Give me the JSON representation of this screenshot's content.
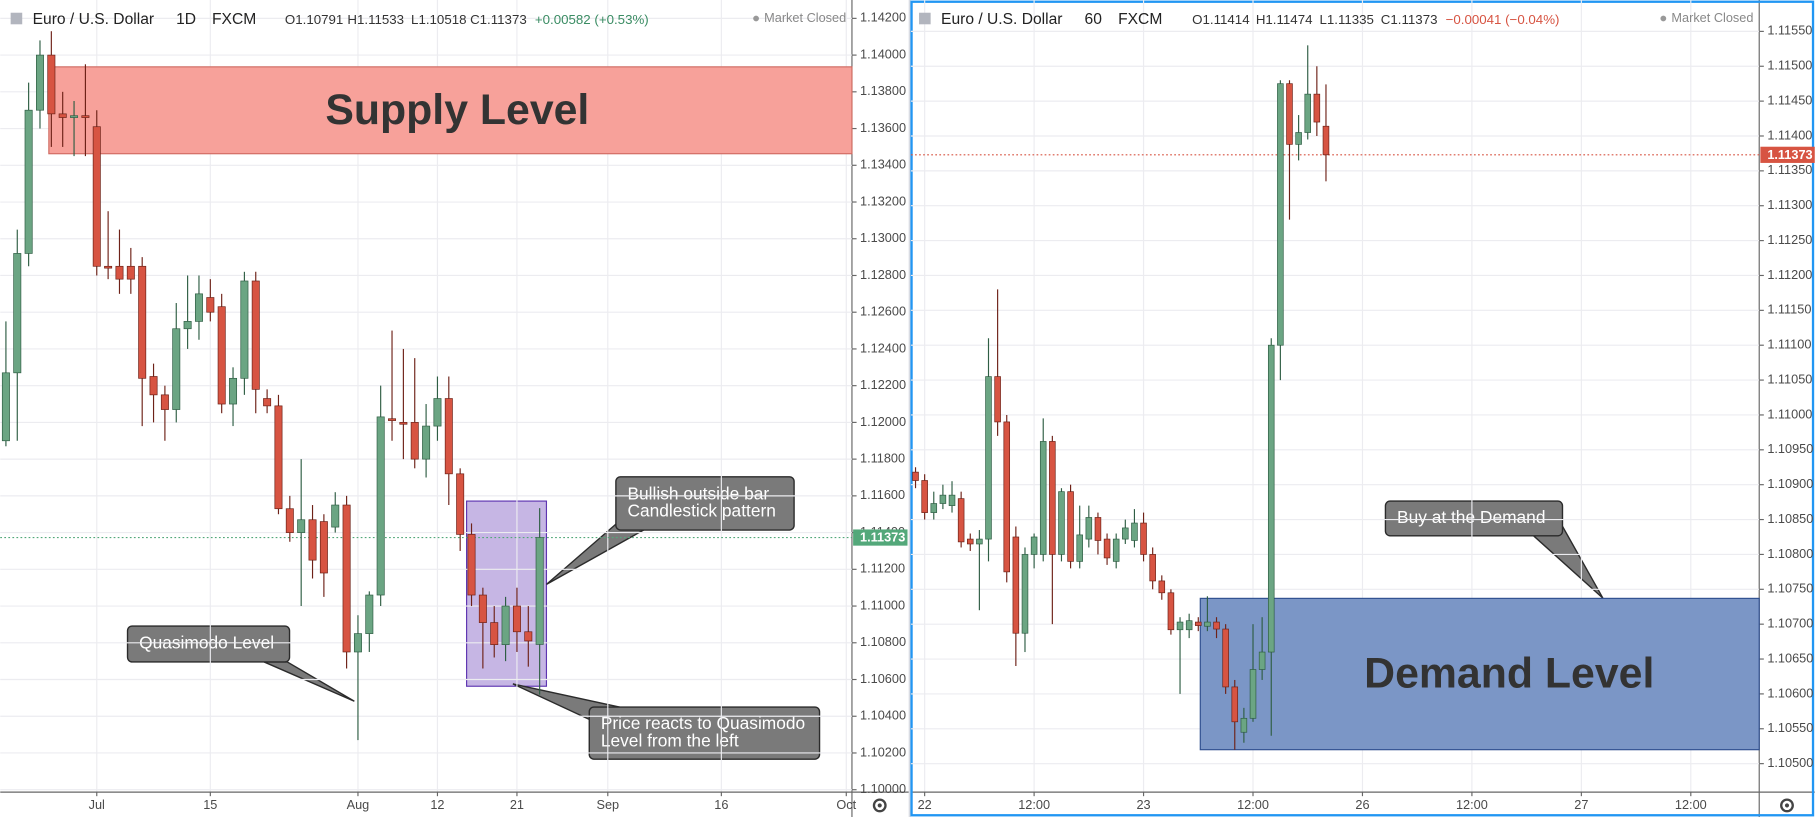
{
  "chart_data": [
    {
      "type": "candlestick",
      "title": "Euro / U.S. Dollar",
      "interval": "1D",
      "source": "FXCM",
      "ohlc": [
        "O1.10791",
        "H1.11533",
        "L1.10518",
        "C1.11373"
      ],
      "change": "+0.00582 (+0.53%)",
      "change_color": "#3a8c63",
      "status": "Market Closed",
      "up_color": "#6ba583",
      "down_color": "#d75442",
      "grid": true,
      "ylim": [
        1.0999,
        1.143
      ],
      "yticks": [
        {
          "value": 1.142,
          "label": "1.14200"
        },
        {
          "value": 1.14,
          "label": "1.14000"
        },
        {
          "value": 1.138,
          "label": "1.13800"
        },
        {
          "value": 1.136,
          "label": "1.13600"
        },
        {
          "value": 1.134,
          "label": "1.13400"
        },
        {
          "value": 1.132,
          "label": "1.13200"
        },
        {
          "value": 1.13,
          "label": "1.13000"
        },
        {
          "value": 1.128,
          "label": "1.12800"
        },
        {
          "value": 1.126,
          "label": "1.12600"
        },
        {
          "value": 1.124,
          "label": "1.12400"
        },
        {
          "value": 1.122,
          "label": "1.12200"
        },
        {
          "value": 1.12,
          "label": "1.12000"
        },
        {
          "value": 1.118,
          "label": "1.11800"
        },
        {
          "value": 1.116,
          "label": "1.11600"
        },
        {
          "value": 1.114,
          "label": "1.11400"
        },
        {
          "value": 1.112,
          "label": "1.11200"
        },
        {
          "value": 1.11,
          "label": "1.11000"
        },
        {
          "value": 1.108,
          "label": "1.10800"
        },
        {
          "value": 1.106,
          "label": "1.10600"
        },
        {
          "value": 1.104,
          "label": "1.10400"
        },
        {
          "value": 1.102,
          "label": "1.10200"
        },
        {
          "value": 1.1,
          "label": "1.10000"
        }
      ],
      "categories": [
        null,
        null,
        null,
        null,
        null,
        null,
        null,
        null,
        "Jul",
        null,
        null,
        null,
        null,
        null,
        null,
        null,
        null,
        null,
        "15",
        null,
        null,
        null,
        null,
        null,
        null,
        null,
        null,
        null,
        null,
        null,
        null,
        "Aug",
        null,
        null,
        null,
        null,
        null,
        null,
        "12",
        null,
        null,
        null,
        null,
        null,
        null,
        "21",
        null,
        null,
        null,
        null,
        null,
        null,
        null,
        "Sep",
        null,
        null,
        null,
        null,
        null,
        null,
        null,
        null,
        null,
        "16",
        null,
        null,
        null,
        null,
        null,
        null,
        null,
        null,
        null,
        null,
        "Oct"
      ],
      "open": [
        1.119,
        1.1227,
        1.1292,
        1.137,
        1.14,
        1.1368,
        1.1366,
        1.1367,
        1.1361,
        1.1285,
        1.1285,
        1.1285,
        1.1285,
        1.1225,
        1.1215,
        1.1207,
        1.1251,
        1.1255,
        1.1268,
        1.1263,
        1.121,
        1.1224,
        1.1277,
        1.1213,
        1.1209,
        1.1153,
        1.114,
        1.1147,
        1.1146,
        1.1143,
        1.1155,
        1.1075,
        1.1085,
        1.1106,
        1.1202,
        1.12,
        1.12,
        1.118,
        1.1198,
        1.1213,
        1.1172,
        1.1139,
        1.1106,
        1.1091,
        1.1079,
        1.11,
        1.1086,
        1.10791,
        null,
        null,
        null,
        null,
        null,
        null,
        null,
        null,
        null,
        null,
        null,
        null,
        null,
        null,
        null,
        null,
        null,
        null,
        null,
        null,
        null,
        null,
        null,
        null,
        null,
        null,
        null
      ],
      "high": [
        1.1255,
        1.1305,
        1.1385,
        1.1408,
        1.1413,
        1.138,
        1.1375,
        1.1395,
        1.137,
        1.1315,
        1.1305,
        1.1295,
        1.129,
        1.1232,
        1.122,
        1.1265,
        1.128,
        1.128,
        1.1278,
        1.127,
        1.123,
        1.1282,
        1.1282,
        1.1218,
        1.1215,
        1.116,
        1.118,
        1.1155,
        1.115,
        1.1162,
        1.116,
        1.1095,
        1.1108,
        1.122,
        1.125,
        1.124,
        1.1235,
        1.121,
        1.1225,
        1.1225,
        1.1175,
        1.1145,
        1.111,
        1.11,
        1.1105,
        1.111,
        1.11,
        1.11533,
        null,
        null,
        null,
        null,
        null,
        null,
        null,
        null,
        null,
        null,
        null,
        null,
        null,
        null,
        null,
        null,
        null,
        null,
        null,
        null,
        null,
        null,
        null,
        null,
        null,
        null,
        null
      ],
      "low": [
        1.1187,
        1.119,
        1.1285,
        1.136,
        1.135,
        1.135,
        1.1345,
        1.1345,
        1.128,
        1.1278,
        1.127,
        1.127,
        1.1198,
        1.12,
        1.119,
        1.12,
        1.124,
        1.1245,
        1.1255,
        1.1205,
        1.1198,
        1.1215,
        1.1205,
        1.1205,
        1.115,
        1.1135,
        1.11,
        1.1115,
        1.1105,
        1.114,
        1.1066,
        1.1027,
        1.1075,
        1.11,
        1.119,
        1.118,
        1.1175,
        1.117,
        1.119,
        1.1155,
        1.113,
        1.11,
        1.1066,
        1.1072,
        1.107,
        1.1075,
        1.1067,
        1.10518,
        null,
        null,
        null,
        null,
        null,
        null,
        null,
        null,
        null,
        null,
        null,
        null,
        null,
        null,
        null,
        null,
        null,
        null,
        null,
        null,
        null,
        null,
        null,
        null,
        null,
        null,
        null
      ],
      "close": [
        1.1227,
        1.1292,
        1.137,
        1.14,
        1.1368,
        1.1366,
        1.1367,
        1.1366,
        1.1285,
        1.1284,
        1.1278,
        1.1278,
        1.1224,
        1.1215,
        1.1207,
        1.1251,
        1.1255,
        1.127,
        1.126,
        1.121,
        1.1224,
        1.1277,
        1.1218,
        1.1209,
        1.1153,
        1.114,
        1.1147,
        1.1125,
        1.1118,
        1.1155,
        1.1075,
        1.1085,
        1.1106,
        1.1203,
        1.1201,
        1.1199,
        1.118,
        1.1198,
        1.1213,
        1.1172,
        1.1139,
        1.1106,
        1.1091,
        1.1079,
        1.11,
        1.1086,
        1.1081,
        1.11373,
        null,
        null,
        null,
        null,
        null,
        null,
        null,
        null,
        null,
        null,
        null,
        null,
        null,
        null,
        null,
        null,
        null,
        null,
        null,
        null,
        null,
        null,
        null,
        null,
        null,
        null,
        null
      ],
      "last_price": {
        "value": 1.11373,
        "label": "1.11373",
        "color": "#53a87a"
      },
      "zones": [
        {
          "label": "Supply Level",
          "range": [
            1.13463,
            1.13936
          ],
          "color": "#f7a19a",
          "border": "#d06b62"
        }
      ],
      "callouts": [
        {
          "lines": [
            "Quasimodo Level"
          ]
        },
        {
          "lines": [
            "Bullish outside bar",
            "Candlestick pattern"
          ]
        },
        {
          "lines": [
            "Price reacts to Quasimodo",
            "Level from the left"
          ]
        }
      ]
    },
    {
      "type": "candlestick",
      "title": "Euro / U.S. Dollar",
      "interval": "60",
      "source": "FXCM",
      "ohlc": [
        "O1.11414",
        "H1.11474",
        "L1.11335",
        "C1.11373"
      ],
      "change": "−0.00041 (−0.04%)",
      "change_color": "#d75442",
      "status": "Market Closed",
      "up_color": "#6ba583",
      "down_color": "#d75442",
      "grid": true,
      "ylim": [
        1.1046,
        1.11595
      ],
      "yticks": [
        {
          "value": 1.1155,
          "label": "1.11550"
        },
        {
          "value": 1.115,
          "label": "1.11500"
        },
        {
          "value": 1.1145,
          "label": "1.11450"
        },
        {
          "value": 1.114,
          "label": "1.11400"
        },
        {
          "value": 1.1135,
          "label": "1.11350"
        },
        {
          "value": 1.113,
          "label": "1.11300"
        },
        {
          "value": 1.1125,
          "label": "1.11250"
        },
        {
          "value": 1.112,
          "label": "1.11200"
        },
        {
          "value": 1.1115,
          "label": "1.11150"
        },
        {
          "value": 1.111,
          "label": "1.11100"
        },
        {
          "value": 1.1105,
          "label": "1.11050"
        },
        {
          "value": 1.11,
          "label": "1.11000"
        },
        {
          "value": 1.1095,
          "label": "1.10950"
        },
        {
          "value": 1.109,
          "label": "1.10900"
        },
        {
          "value": 1.1085,
          "label": "1.10850"
        },
        {
          "value": 1.108,
          "label": "1.10800"
        },
        {
          "value": 1.1075,
          "label": "1.10750"
        },
        {
          "value": 1.107,
          "label": "1.10700"
        },
        {
          "value": 1.1065,
          "label": "1.10650"
        },
        {
          "value": 1.106,
          "label": "1.10600"
        },
        {
          "value": 1.1055,
          "label": "1.10550"
        },
        {
          "value": 1.105,
          "label": "1.10500"
        }
      ],
      "categories": [
        null,
        "22",
        null,
        null,
        null,
        null,
        null,
        null,
        null,
        null,
        null,
        null,
        null,
        "12:00",
        null,
        null,
        null,
        null,
        null,
        null,
        null,
        null,
        null,
        null,
        null,
        "23",
        null,
        null,
        null,
        null,
        null,
        null,
        null,
        null,
        null,
        null,
        null,
        "12:00",
        null,
        null,
        null,
        null,
        null,
        null,
        null,
        null,
        null,
        null,
        null,
        "26",
        null,
        null,
        null,
        null,
        null,
        null,
        null,
        null,
        null,
        null,
        null,
        "12:00",
        null,
        null,
        null,
        null,
        null,
        null,
        null,
        null,
        null,
        null,
        null,
        "27",
        null,
        null,
        null,
        null,
        null,
        null,
        null,
        null,
        null,
        null,
        null,
        "12:00",
        null,
        null,
        null,
        null,
        null,
        null,
        null
      ],
      "open": [
        1.10918,
        1.10906,
        1.1086,
        1.10873,
        1.1087,
        1.1088,
        1.10822,
        1.10815,
        1.10822,
        1.11055,
        1.1099,
        1.10825,
        1.10687,
        1.108,
        1.108,
        1.10962,
        1.108,
        1.1089,
        1.1079,
        1.10822,
        1.10853,
        1.10822,
        1.1079,
        1.10822,
        1.1082,
        1.10845,
        1.108,
        1.10762,
        1.10745,
        1.10692,
        1.10692,
        1.10703,
        1.10697,
        1.10703,
        1.10693,
        1.1061,
        1.10545,
        1.10565,
        1.10635,
        1.1066,
        1.111,
        1.11475,
        1.11388,
        1.11405,
        1.1146,
        1.11414,
        null,
        null,
        null,
        null,
        null,
        null,
        null,
        null,
        null,
        null,
        null,
        null,
        null,
        null,
        null,
        null,
        null,
        null,
        null,
        null,
        null,
        null,
        null,
        null,
        null,
        null,
        null,
        null,
        null,
        null,
        null,
        null,
        null,
        null,
        null,
        null,
        null,
        null,
        null,
        null,
        null,
        null,
        null,
        null,
        null,
        null,
        null
      ],
      "high": [
        1.10925,
        1.10915,
        1.1089,
        1.109,
        1.10905,
        1.1089,
        1.1083,
        1.10835,
        1.1111,
        1.1118,
        1.11,
        1.1084,
        1.1081,
        1.1083,
        1.10995,
        1.1097,
        1.10895,
        1.109,
        1.1087,
        1.1087,
        1.1086,
        1.1083,
        1.1083,
        1.1085,
        1.10865,
        1.1086,
        1.1081,
        1.1077,
        1.1075,
        1.1071,
        1.10715,
        1.1071,
        1.1074,
        1.1071,
        1.107,
        1.1062,
        1.1058,
        1.107,
        1.1071,
        1.1111,
        1.1148,
        1.1148,
        1.1143,
        1.1153,
        1.115,
        1.11474,
        null,
        null,
        null,
        null,
        null,
        null,
        null,
        null,
        null,
        null,
        null,
        null,
        null,
        null,
        null,
        null,
        null,
        null,
        null,
        null,
        null,
        null,
        null,
        null,
        null,
        null,
        null,
        null,
        null,
        null,
        null,
        null,
        null,
        null,
        null,
        null,
        null,
        null,
        null,
        null,
        null,
        null,
        null,
        null,
        null,
        null,
        null
      ],
      "low": [
        1.10895,
        1.1085,
        1.1085,
        1.10865,
        1.1086,
        1.1081,
        1.10805,
        1.1072,
        1.1079,
        1.1097,
        1.1076,
        1.1064,
        1.1066,
        1.1078,
        1.1079,
        1.107,
        1.1079,
        1.1078,
        1.1078,
        1.1081,
        1.108,
        1.10785,
        1.1078,
        1.10815,
        1.1081,
        1.1079,
        1.1075,
        1.10735,
        1.10685,
        1.106,
        1.1068,
        1.1069,
        1.1069,
        1.1068,
        1.106,
        1.1052,
        1.1053,
        1.1056,
        1.1062,
        1.1054,
        1.1105,
        1.1128,
        1.11365,
        1.11395,
        1.114,
        1.11335,
        null,
        null,
        null,
        null,
        null,
        null,
        null,
        null,
        null,
        null,
        null,
        null,
        null,
        null,
        null,
        null,
        null,
        null,
        null,
        null,
        null,
        null,
        null,
        null,
        null,
        null,
        null,
        null,
        null,
        null,
        null,
        null,
        null,
        null,
        null,
        null,
        null,
        null,
        null,
        null,
        null,
        null,
        null,
        null,
        null,
        null,
        null
      ],
      "close": [
        1.10906,
        1.1086,
        1.10873,
        1.10885,
        1.10885,
        1.10818,
        1.10815,
        1.10822,
        1.11055,
        1.1099,
        1.10775,
        1.10687,
        1.108,
        1.10825,
        1.10962,
        1.108,
        1.1089,
        1.1079,
        1.10828,
        1.10853,
        1.1082,
        1.10795,
        1.10822,
        1.10838,
        1.10845,
        1.108,
        1.10762,
        1.10745,
        1.10692,
        1.10703,
        1.10705,
        1.10698,
        1.10703,
        1.10693,
        1.1061,
        1.1056,
        1.10565,
        1.10635,
        1.1066,
        1.111,
        1.11475,
        1.11388,
        1.11405,
        1.1146,
        1.1142,
        1.11373,
        null,
        null,
        null,
        null,
        null,
        null,
        null,
        null,
        null,
        null,
        null,
        null,
        null,
        null,
        null,
        null,
        null,
        null,
        null,
        null,
        null,
        null,
        null,
        null,
        null,
        null,
        null,
        null,
        null,
        null,
        null,
        null,
        null,
        null,
        null,
        null,
        null,
        null,
        null,
        null,
        null,
        null,
        null,
        null,
        null,
        null,
        null
      ],
      "last_price": {
        "value": 1.11373,
        "label": "1.11373",
        "color": "#d75442"
      },
      "zones": [
        {
          "label": "Demand Level",
          "range": [
            1.1052,
            1.10737
          ],
          "color": "#7b96c6",
          "border": "#2f4f8f"
        }
      ],
      "callouts": [
        {
          "lines": [
            "Buy at the Demand"
          ]
        }
      ]
    }
  ]
}
